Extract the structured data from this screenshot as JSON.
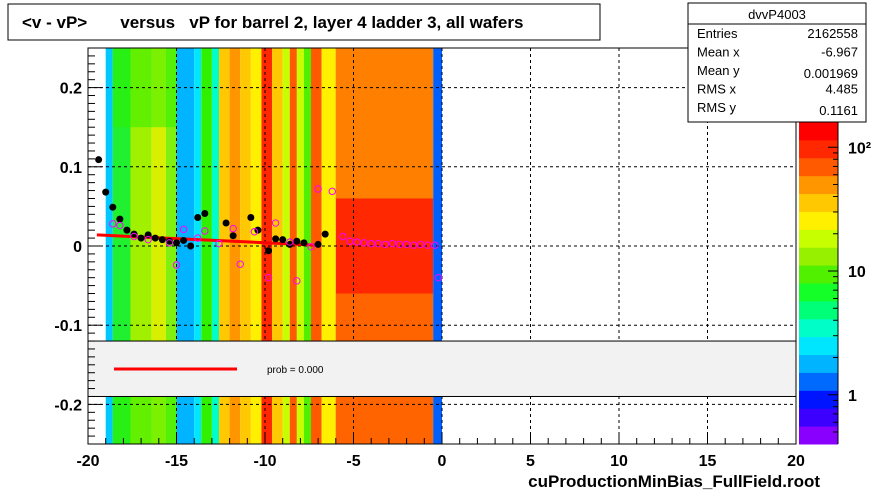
{
  "chart_data": {
    "type": "heatmap",
    "title": "<v - vP>       versus   vP for barrel 2, layer 4 ladder 3, all wafers",
    "xlabel": "",
    "ylabel": "",
    "footer": "cuProductionMinBias_FullField.root",
    "xlim": [
      -20,
      20
    ],
    "ylim": [
      -0.25,
      0.25
    ],
    "x_ticks": [
      -20,
      -15,
      -10,
      -5,
      0,
      5,
      10,
      15,
      20
    ],
    "x_tick_labels": [
      "-20",
      "-15",
      "-10",
      "-5",
      "0",
      "5",
      "10",
      "15",
      "20"
    ],
    "y_ticks": [
      0.2,
      0.1,
      0,
      -0.1,
      -0.2
    ],
    "y_tick_labels": [
      "0.2",
      "0.1",
      "0",
      "-0.1",
      "-0.2"
    ],
    "grid": true,
    "stats": {
      "name": "dvvP4003",
      "rows": [
        {
          "label": "Entries",
          "value": "2162558"
        },
        {
          "label": "Mean x",
          "value": "-6.967"
        },
        {
          "label": "Mean y",
          "value": "0.001969"
        },
        {
          "label": "RMS x",
          "value": "4.485"
        },
        {
          "label": "RMS y",
          "value": "0.1161"
        }
      ]
    },
    "colorbar": {
      "scale": "log",
      "min": 0.4,
      "max": 160,
      "tick_values": [
        100,
        10,
        1
      ],
      "tick_labels": [
        "10²",
        "10",
        "1"
      ],
      "colors": [
        "#8a00ff",
        "#3c00ff",
        "#0014ff",
        "#006aff",
        "#00b4ff",
        "#00e6ff",
        "#00ffc8",
        "#00ff78",
        "#14ff28",
        "#50f000",
        "#96f000",
        "#c8ff00",
        "#fff000",
        "#ffc800",
        "#ff9600",
        "#ff5a00",
        "#ff2800",
        "#ff0000"
      ]
    },
    "legend": {
      "placement": "bottom-band",
      "y_range": [
        -0.19,
        -0.12
      ],
      "entry": "prob = 0.000"
    },
    "fit": {
      "color": "#ff0000",
      "points": [
        {
          "x": -19.5,
          "y": 0.014
        },
        {
          "x": -7.0,
          "y": 0.001
        }
      ]
    },
    "series": [
      {
        "marker": "filled-circle",
        "color": "#000000",
        "points": [
          {
            "x": -19.4,
            "y": 0.109
          },
          {
            "x": -19.0,
            "y": 0.068
          },
          {
            "x": -18.6,
            "y": 0.049
          },
          {
            "x": -18.2,
            "y": 0.034
          },
          {
            "x": -17.8,
            "y": 0.02
          },
          {
            "x": -17.4,
            "y": 0.015
          },
          {
            "x": -17.0,
            "y": 0.01
          },
          {
            "x": -16.6,
            "y": 0.014
          },
          {
            "x": -16.2,
            "y": 0.01
          },
          {
            "x": -15.8,
            "y": 0.008
          },
          {
            "x": -15.4,
            "y": 0.006
          },
          {
            "x": -15.0,
            "y": 0.004
          },
          {
            "x": -14.6,
            "y": 0.007
          },
          {
            "x": -14.2,
            "y": 0.0
          },
          {
            "x": -13.8,
            "y": 0.036
          },
          {
            "x": -13.4,
            "y": 0.041
          },
          {
            "x": -12.2,
            "y": 0.029
          },
          {
            "x": -11.8,
            "y": 0.013
          },
          {
            "x": -10.8,
            "y": 0.036
          },
          {
            "x": -10.4,
            "y": 0.02
          },
          {
            "x": -9.8,
            "y": -0.006
          },
          {
            "x": -9.4,
            "y": 0.009
          },
          {
            "x": -9.0,
            "y": 0.008
          },
          {
            "x": -8.6,
            "y": 0.002
          },
          {
            "x": -8.2,
            "y": 0.006
          },
          {
            "x": -7.8,
            "y": 0.004
          },
          {
            "x": -7.0,
            "y": 0.002
          },
          {
            "x": -6.6,
            "y": 0.015
          }
        ]
      },
      {
        "marker": "open-circle",
        "color": "#ff00ff",
        "points": [
          {
            "x": -18.6,
            "y": 0.028
          },
          {
            "x": -18.2,
            "y": 0.026
          },
          {
            "x": -17.4,
            "y": 0.012
          },
          {
            "x": -16.6,
            "y": 0.008
          },
          {
            "x": -15.4,
            "y": 0.004
          },
          {
            "x": -15.0,
            "y": -0.024
          },
          {
            "x": -14.6,
            "y": 0.021
          },
          {
            "x": -13.8,
            "y": 0.01
          },
          {
            "x": -13.4,
            "y": 0.019
          },
          {
            "x": -12.6,
            "y": 0.003
          },
          {
            "x": -11.8,
            "y": 0.022
          },
          {
            "x": -11.4,
            "y": -0.023
          },
          {
            "x": -10.6,
            "y": 0.018
          },
          {
            "x": -9.8,
            "y": -0.04
          },
          {
            "x": -9.4,
            "y": 0.029
          },
          {
            "x": -8.6,
            "y": 0.005
          },
          {
            "x": -8.2,
            "y": -0.044
          },
          {
            "x": -7.4,
            "y": -0.001
          },
          {
            "x": -7.0,
            "y": 0.072
          },
          {
            "x": -6.2,
            "y": 0.069
          },
          {
            "x": -5.6,
            "y": 0.012
          },
          {
            "x": -5.2,
            "y": 0.006
          },
          {
            "x": -4.8,
            "y": 0.005
          },
          {
            "x": -4.4,
            "y": 0.004
          },
          {
            "x": -4.0,
            "y": 0.003
          },
          {
            "x": -3.6,
            "y": 0.003
          },
          {
            "x": -3.2,
            "y": 0.002
          },
          {
            "x": -2.8,
            "y": 0.003
          },
          {
            "x": -2.4,
            "y": 0.002
          },
          {
            "x": -2.0,
            "y": 0.002
          },
          {
            "x": -1.6,
            "y": 0.001
          },
          {
            "x": -1.2,
            "y": 0.002
          },
          {
            "x": -0.8,
            "y": 0.001
          },
          {
            "x": -0.4,
            "y": 0.001
          },
          {
            "x": -0.2,
            "y": -0.04
          }
        ]
      }
    ],
    "heatmap_columns": [
      {
        "x0": -19.0,
        "x1": -18.6,
        "color": "#00c8ff"
      },
      {
        "x0": -18.6,
        "x1": -17.6,
        "color": "#20f030"
      },
      {
        "x0": -17.6,
        "x1": -16.4,
        "color": "#a0f000"
      },
      {
        "x0": -16.4,
        "x1": -15.6,
        "color": "#d8f000"
      },
      {
        "x0": -15.6,
        "x1": -15.0,
        "color": "#80f010"
      },
      {
        "x0": -15.0,
        "x1": -14.0,
        "color": "#00b4ff"
      },
      {
        "x0": -14.0,
        "x1": -13.6,
        "color": "#00e6ff"
      },
      {
        "x0": -13.6,
        "x1": -13.0,
        "color": "#30f000"
      },
      {
        "x0": -13.0,
        "x1": -12.6,
        "color": "#00ffc8"
      },
      {
        "x0": -12.6,
        "x1": -12.0,
        "color": "#ffc800"
      },
      {
        "x0": -12.0,
        "x1": -11.4,
        "color": "#ff9600"
      },
      {
        "x0": -11.4,
        "x1": -10.8,
        "color": "#ffc800"
      },
      {
        "x0": -10.8,
        "x1": -10.2,
        "color": "#fff000"
      },
      {
        "x0": -10.2,
        "x1": -9.6,
        "color": "#ff2800"
      },
      {
        "x0": -9.6,
        "x1": -9.0,
        "color": "#ffc800"
      },
      {
        "x0": -9.0,
        "x1": -8.6,
        "color": "#c8ff00"
      },
      {
        "x0": -8.6,
        "x1": -8.2,
        "color": "#ff5a00"
      },
      {
        "x0": -8.2,
        "x1": -7.8,
        "color": "#c8ff00"
      },
      {
        "x0": -7.8,
        "x1": -7.4,
        "color": "#50f000"
      },
      {
        "x0": -7.4,
        "x1": -6.8,
        "color": "#ff5a00"
      },
      {
        "x0": -6.8,
        "x1": -6.0,
        "color": "#fff000"
      },
      {
        "x0": -6.0,
        "x1": -0.5,
        "color": "#ff2800"
      },
      {
        "x0": -0.5,
        "x1": 0.0,
        "color": "#0060ff"
      }
    ],
    "heatmap_bands": [
      {
        "x0": -6.0,
        "x1": -0.5,
        "y0": 0.06,
        "y1": 0.25,
        "color": "#ffc800"
      },
      {
        "x0": -6.0,
        "x1": -0.5,
        "y0": -0.25,
        "y1": -0.06,
        "color": "#ff9600"
      },
      {
        "x0": -18.6,
        "x1": -15.0,
        "y0": 0.15,
        "y1": 0.25,
        "color": "#30f000"
      },
      {
        "x0": -18.6,
        "x1": -15.0,
        "y0": -0.25,
        "y1": -0.16,
        "color": "#30f000"
      }
    ]
  }
}
